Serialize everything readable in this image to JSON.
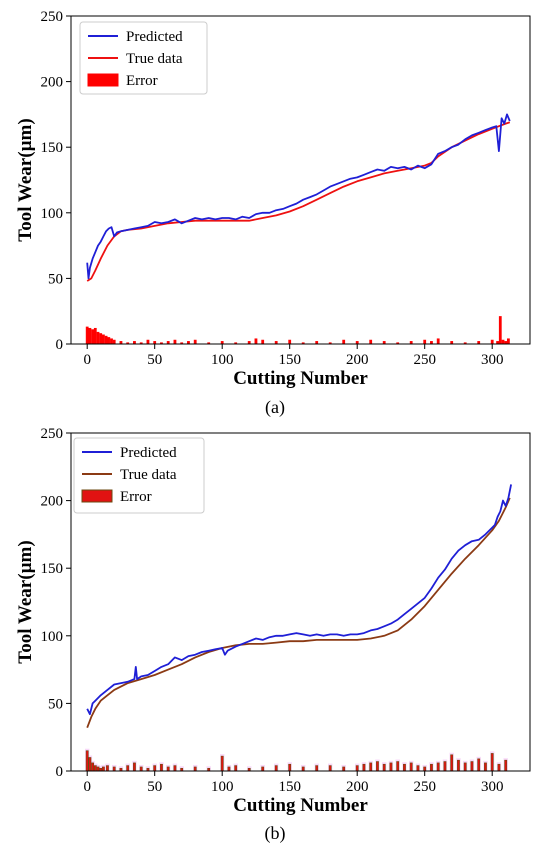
{
  "chart_data": [
    {
      "type": "line",
      "panel_label": "a",
      "caption": "(a)",
      "xlabel": "Cutting Number",
      "ylabel": "Tool Wear(µm)",
      "xlim": [
        -12,
        328
      ],
      "ylim": [
        0,
        250
      ],
      "xticks": [
        0,
        50,
        100,
        150,
        200,
        250,
        300
      ],
      "yticks": [
        0,
        50,
        100,
        150,
        200,
        250
      ],
      "legend": {
        "position": "top-left",
        "entries": [
          "Predicted",
          "True data",
          "Error"
        ]
      },
      "colors": {
        "predicted": "#1f1fd6",
        "true": "#ee1111",
        "error": "#ff0000",
        "error_edge": "#ff0000"
      },
      "series": [
        {
          "name": "Predicted",
          "x": [
            0,
            1,
            2,
            4,
            6,
            8,
            10,
            12,
            14,
            16,
            18,
            20,
            22,
            25,
            30,
            35,
            40,
            45,
            50,
            55,
            60,
            65,
            70,
            75,
            80,
            85,
            90,
            95,
            100,
            105,
            110,
            115,
            120,
            125,
            130,
            135,
            140,
            145,
            150,
            155,
            160,
            165,
            170,
            175,
            180,
            185,
            190,
            195,
            200,
            205,
            210,
            215,
            220,
            225,
            230,
            235,
            240,
            245,
            250,
            255,
            260,
            265,
            270,
            275,
            280,
            285,
            290,
            295,
            300,
            303,
            305,
            307,
            309,
            311,
            313
          ],
          "y": [
            62,
            50,
            58,
            65,
            70,
            75,
            78,
            82,
            86,
            88,
            89,
            82,
            85,
            86,
            87,
            88,
            89,
            90,
            93,
            92,
            93,
            95,
            92,
            94,
            96,
            95,
            96,
            95,
            96,
            96,
            95,
            97,
            96,
            99,
            100,
            100,
            102,
            103,
            105,
            107,
            110,
            112,
            114,
            117,
            120,
            122,
            124,
            126,
            127,
            129,
            131,
            133,
            132,
            135,
            134,
            135,
            133,
            136,
            134,
            137,
            145,
            147,
            150,
            152,
            156,
            159,
            161,
            163,
            165,
            166,
            147,
            172,
            168,
            175,
            170
          ]
        },
        {
          "name": "True data",
          "x": [
            0,
            3,
            6,
            10,
            15,
            20,
            25,
            30,
            40,
            50,
            60,
            70,
            80,
            90,
            100,
            110,
            120,
            130,
            140,
            150,
            160,
            170,
            180,
            190,
            200,
            210,
            220,
            230,
            240,
            250,
            255,
            260,
            270,
            280,
            290,
            300,
            305,
            310,
            313
          ],
          "y": [
            48,
            50,
            56,
            65,
            75,
            82,
            86,
            87,
            88,
            90,
            92,
            93,
            94,
            94,
            94,
            94,
            94,
            96,
            98,
            101,
            105,
            110,
            115,
            120,
            124,
            127,
            130,
            132,
            134,
            136,
            138,
            143,
            150,
            155,
            160,
            164,
            166,
            168,
            169
          ]
        },
        {
          "name": "Error",
          "kind": "bar",
          "x": [
            0,
            2,
            4,
            6,
            8,
            10,
            12,
            14,
            16,
            18,
            20,
            25,
            30,
            35,
            40,
            45,
            50,
            55,
            60,
            65,
            70,
            75,
            80,
            90,
            100,
            110,
            120,
            125,
            130,
            140,
            150,
            160,
            170,
            180,
            190,
            200,
            210,
            220,
            230,
            240,
            250,
            255,
            260,
            270,
            280,
            290,
            300,
            304,
            306,
            308,
            310,
            312
          ],
          "y": [
            13,
            12,
            11,
            12,
            9,
            8,
            7,
            6,
            5,
            4,
            3,
            2,
            1,
            2,
            1,
            3,
            2,
            1,
            2,
            3,
            1,
            2,
            3,
            1,
            2,
            1,
            2,
            4,
            3,
            2,
            3,
            1,
            2,
            1,
            3,
            2,
            3,
            2,
            1,
            2,
            3,
            2,
            4,
            2,
            1,
            2,
            3,
            2,
            21,
            3,
            2,
            4
          ]
        }
      ]
    },
    {
      "type": "line",
      "panel_label": "b",
      "caption": "(b)",
      "xlabel": "Cutting Number",
      "ylabel": "Tool Wear(µm)",
      "xlim": [
        -12,
        328
      ],
      "ylim": [
        0,
        250
      ],
      "xticks": [
        0,
        50,
        100,
        150,
        200,
        250,
        300
      ],
      "yticks": [
        0,
        50,
        100,
        150,
        200,
        250
      ],
      "legend": {
        "position": "top-left",
        "entries": [
          "Predicted",
          "True data",
          "Error"
        ]
      },
      "colors": {
        "predicted": "#1f1fd6",
        "true": "#8b3a14",
        "error": "#e11212",
        "error_edge": "#6b4a10",
        "error_halo": "#f5c8f5"
      },
      "series": [
        {
          "name": "Predicted",
          "x": [
            0,
            2,
            4,
            6,
            8,
            10,
            15,
            20,
            25,
            30,
            35,
            36,
            37,
            40,
            45,
            50,
            55,
            60,
            65,
            70,
            75,
            80,
            85,
            90,
            95,
            100,
            102,
            104,
            110,
            115,
            120,
            125,
            130,
            135,
            140,
            145,
            150,
            155,
            160,
            165,
            170,
            175,
            180,
            185,
            190,
            195,
            200,
            205,
            210,
            215,
            220,
            225,
            230,
            235,
            240,
            245,
            250,
            255,
            260,
            265,
            270,
            275,
            280,
            285,
            290,
            295,
            300,
            302,
            304,
            306,
            308,
            310,
            312,
            314
          ],
          "y": [
            46,
            42,
            50,
            52,
            54,
            56,
            60,
            64,
            65,
            66,
            68,
            77,
            68,
            70,
            71,
            74,
            77,
            79,
            84,
            82,
            85,
            86,
            88,
            89,
            90,
            91,
            86,
            89,
            92,
            94,
            96,
            98,
            97,
            99,
            100,
            100,
            101,
            102,
            101,
            100,
            101,
            100,
            101,
            101,
            100,
            101,
            101,
            102,
            104,
            105,
            107,
            109,
            112,
            116,
            120,
            124,
            128,
            135,
            143,
            149,
            157,
            163,
            167,
            170,
            171,
            175,
            180,
            182,
            188,
            192,
            200,
            196,
            202,
            212
          ]
        },
        {
          "name": "True data",
          "x": [
            0,
            3,
            6,
            10,
            15,
            20,
            30,
            40,
            50,
            60,
            70,
            80,
            90,
            100,
            110,
            120,
            130,
            140,
            150,
            160,
            170,
            180,
            190,
            200,
            210,
            220,
            230,
            240,
            250,
            260,
            270,
            280,
            290,
            300,
            305,
            310,
            313
          ],
          "y": [
            32,
            40,
            46,
            52,
            56,
            60,
            65,
            68,
            71,
            75,
            79,
            84,
            88,
            91,
            93,
            94,
            94,
            95,
            96,
            96,
            97,
            97,
            97,
            97,
            98,
            100,
            104,
            112,
            122,
            134,
            146,
            157,
            167,
            178,
            185,
            195,
            202
          ]
        },
        {
          "name": "Error",
          "kind": "bar",
          "x": [
            0,
            2,
            4,
            6,
            8,
            10,
            12,
            15,
            20,
            25,
            30,
            35,
            40,
            45,
            50,
            55,
            60,
            65,
            70,
            80,
            90,
            100,
            105,
            110,
            120,
            130,
            140,
            150,
            160,
            170,
            180,
            190,
            200,
            205,
            210,
            215,
            220,
            225,
            230,
            235,
            240,
            245,
            250,
            255,
            260,
            265,
            270,
            275,
            280,
            285,
            290,
            295,
            300,
            305,
            310
          ],
          "y": [
            15,
            10,
            6,
            4,
            3,
            2,
            3,
            4,
            3,
            2,
            4,
            6,
            3,
            2,
            4,
            5,
            3,
            4,
            2,
            3,
            2,
            11,
            3,
            4,
            2,
            3,
            4,
            5,
            3,
            4,
            4,
            3,
            4,
            5,
            6,
            7,
            5,
            6,
            7,
            5,
            6,
            4,
            3,
            5,
            6,
            7,
            12,
            8,
            6,
            7,
            9,
            6,
            13,
            5,
            8
          ]
        }
      ]
    }
  ]
}
